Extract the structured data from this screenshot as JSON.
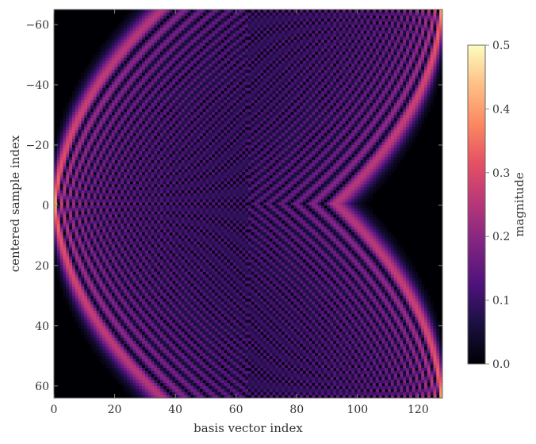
{
  "chart_data": {
    "type": "heatmap",
    "title": "",
    "xlabel": "basis vector index",
    "ylabel": "centered sample index",
    "colorbar_label": "magnitude",
    "xlim": [
      0,
      128
    ],
    "ylim": [
      64,
      -65
    ],
    "x_ticks": [
      0,
      20,
      40,
      60,
      80,
      100,
      120
    ],
    "y_ticks": [
      -60,
      -40,
      -20,
      0,
      20,
      40,
      60
    ],
    "x_tick_labels": [
      "0",
      "20",
      "40",
      "60",
      "80",
      "100",
      "120"
    ],
    "y_tick_labels": [
      "−60",
      "−40",
      "−20",
      "0",
      "20",
      "40",
      "60"
    ],
    "colorbar_range": [
      0.0,
      0.5
    ],
    "colorbar_ticks": [
      0.0,
      0.1,
      0.2,
      0.3,
      0.4,
      0.5
    ],
    "colorbar_tick_labels": [
      "0.0",
      "0.1",
      "0.2",
      "0.3",
      "0.4",
      "0.5"
    ],
    "colormap": "magma",
    "n_basis_vectors": 128,
    "n_samples": 129,
    "sample_index_range": [
      -64,
      64
    ],
    "description_of_values": "Magnitude of Hermite-like basis functions: oscillatory envelopes whose width grows with basis index up to ~63, then shrinks; peak magnitude near the turning points about 0.3"
  }
}
